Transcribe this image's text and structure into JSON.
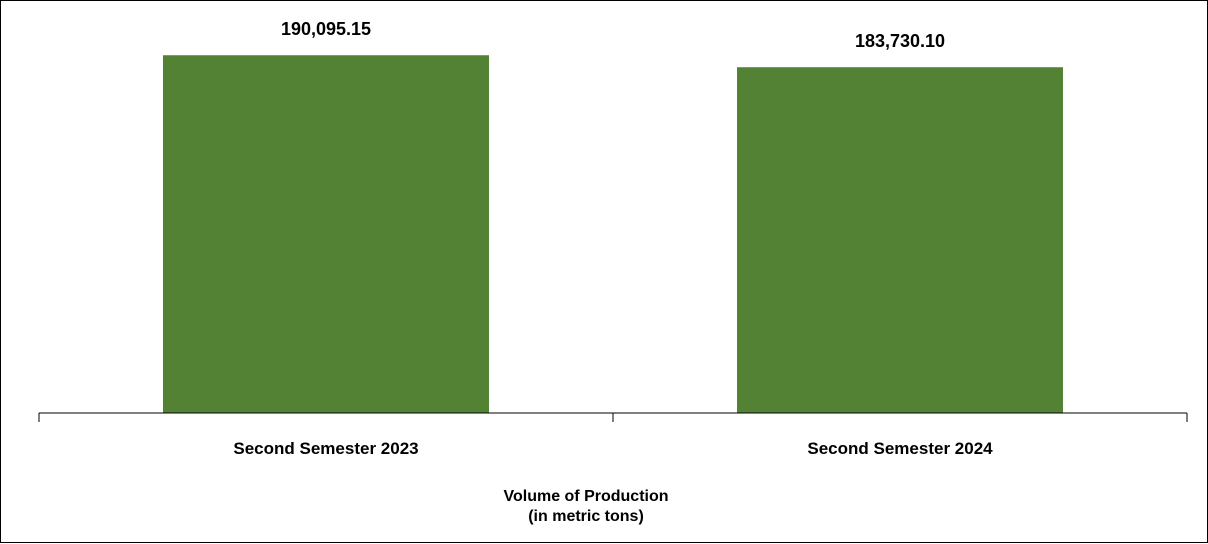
{
  "chart_data": {
    "type": "bar",
    "categories": [
      "Second Semester 2023",
      "Second Semester 2024"
    ],
    "values": [
      190095.15,
      183730.1
    ],
    "value_labels": [
      "190,095.15",
      "183,730.10"
    ],
    "title": "",
    "xlabel": "Volume of Production",
    "xlabel_sub": "(in metric tons)",
    "ylabel": "",
    "ylim": [
      0,
      195000
    ],
    "grid": false,
    "legend": "none",
    "bar_color": "#548235",
    "axis_color": "#000000"
  }
}
